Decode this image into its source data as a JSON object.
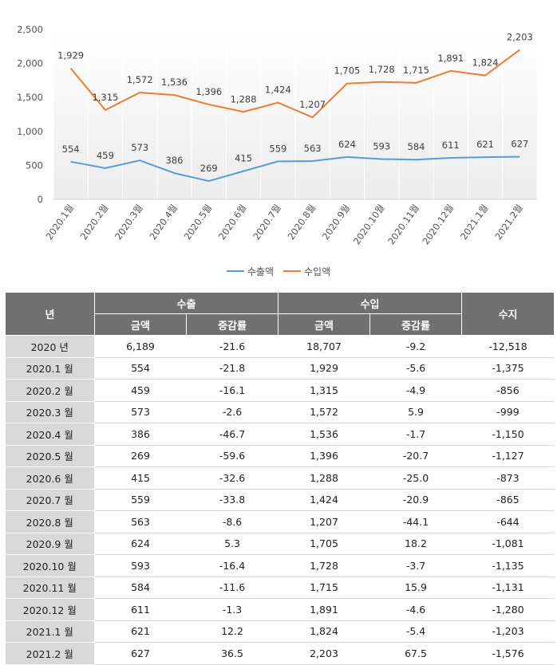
{
  "chart_data": {
    "type": "line",
    "categories": [
      "2020.1월",
      "2020.2월",
      "2020.3월",
      "2020.4월",
      "2020.5월",
      "2020.6월",
      "2020.7월",
      "2020.8월",
      "2020.9월",
      "2020.10월",
      "2020.11월",
      "2020.12월",
      "2021.1월",
      "2021.2월"
    ],
    "series": [
      {
        "name": "수출액",
        "color": "#5b9bd5",
        "values": [
          554,
          459,
          573,
          386,
          269,
          415,
          559,
          563,
          624,
          593,
          584,
          611,
          621,
          627
        ]
      },
      {
        "name": "수입액",
        "color": "#ed7d31",
        "values": [
          1929,
          1315,
          1572,
          1536,
          1396,
          1288,
          1424,
          1207,
          1705,
          1728,
          1715,
          1891,
          1824,
          2203
        ]
      }
    ],
    "ylim": [
      0,
      2500
    ],
    "yticks": [
      "0",
      "500",
      "1,000",
      "1,500",
      "2,000",
      "2,500"
    ],
    "grid": true,
    "legend_position": "bottom"
  },
  "table": {
    "header_year": "년",
    "header_export": "수출",
    "header_import": "수입",
    "header_balance": "수지",
    "sub_amount_1": "금액",
    "sub_rate_1": "증감률",
    "sub_amount_2": "금액",
    "sub_rate_2": "증감률",
    "rows": [
      [
        "2020 년",
        "6,189",
        "-21.6",
        "18,707",
        "-9.2",
        "-12,518"
      ],
      [
        "2020.1 월",
        "554",
        "-21.8",
        "1,929",
        "-5.6",
        "-1,375"
      ],
      [
        "2020.2 월",
        "459",
        "-16.1",
        "1,315",
        "-4.9",
        "-856"
      ],
      [
        "2020.3 월",
        "573",
        "-2.6",
        "1,572",
        "5.9",
        "-999"
      ],
      [
        "2020.4 월",
        "386",
        "-46.7",
        "1,536",
        "-1.7",
        "-1,150"
      ],
      [
        "2020.5 월",
        "269",
        "-59.6",
        "1,396",
        "-20.7",
        "-1,127"
      ],
      [
        "2020.6 월",
        "415",
        "-32.6",
        "1,288",
        "-25.0",
        "-873"
      ],
      [
        "2020.7 월",
        "559",
        "-33.8",
        "1,424",
        "-20.9",
        "-865"
      ],
      [
        "2020.8 월",
        "563",
        "-8.6",
        "1,207",
        "-44.1",
        "-644"
      ],
      [
        "2020.9 월",
        "624",
        "5.3",
        "1,705",
        "18.2",
        "-1,081"
      ],
      [
        "2020.10 월",
        "593",
        "-16.4",
        "1,728",
        "-3.7",
        "-1,135"
      ],
      [
        "2020.11 월",
        "584",
        "-11.6",
        "1,715",
        "15.9",
        "-1,131"
      ],
      [
        "2020.12 월",
        "611",
        "-1.3",
        "1,891",
        "-4.6",
        "-1,280"
      ],
      [
        "2021.1 월",
        "621",
        "12.2",
        "1,824",
        "-5.4",
        "-1,203"
      ],
      [
        "2021.2 월",
        "627",
        "36.5",
        "2,203",
        "67.5",
        "-1,576"
      ]
    ]
  }
}
